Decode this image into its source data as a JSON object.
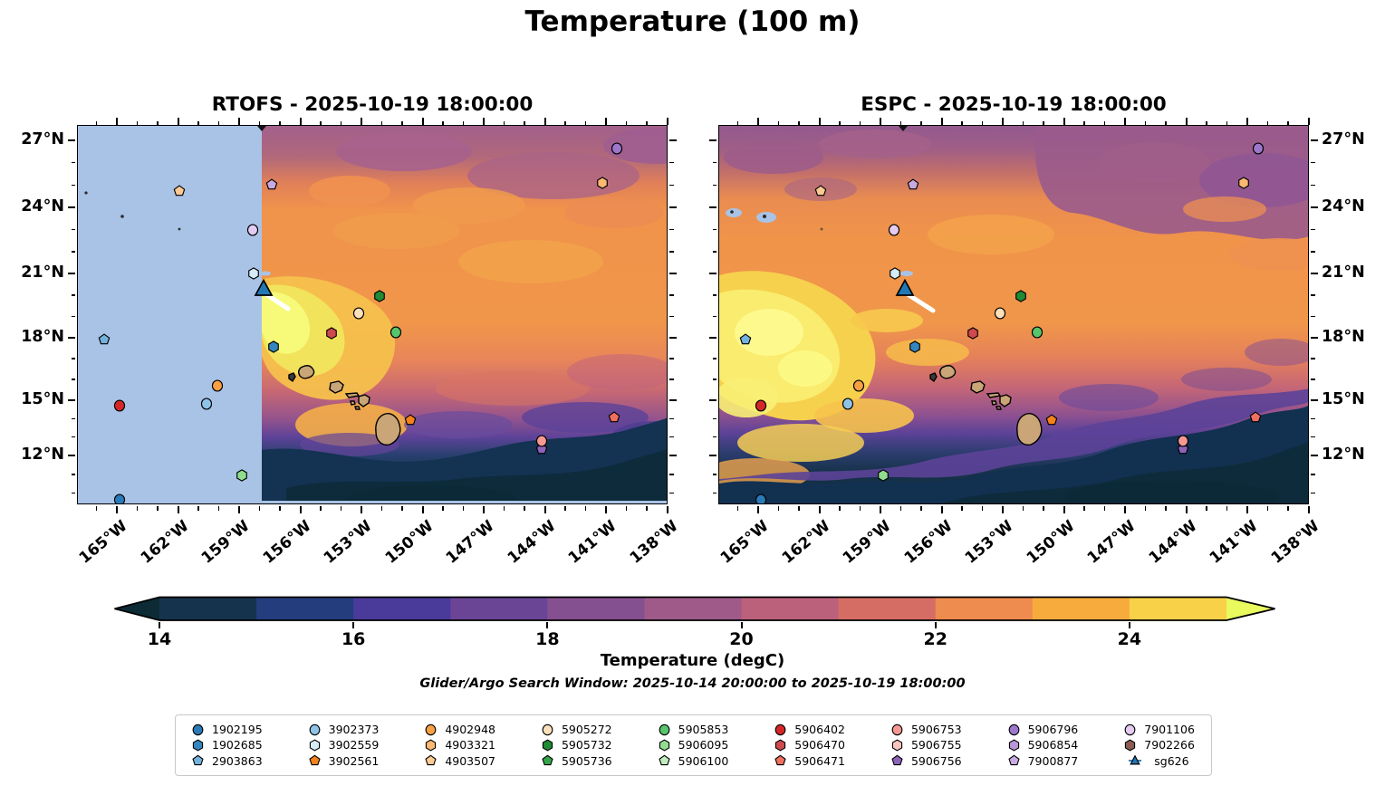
{
  "title": "Temperature (100 m)",
  "panels": [
    {
      "id": "rtofs",
      "title": "RTOFS - 2025-10-19 18:00:00",
      "yLabelSide": "left"
    },
    {
      "id": "espc",
      "title": "ESPC - 2025-10-19 18:00:00",
      "yLabelSide": "right"
    }
  ],
  "axes": {
    "lon_ticks": [
      {
        "label": "165°W",
        "f": 0.0678
      },
      {
        "label": "162°W",
        "f": 0.1713
      },
      {
        "label": "159°W",
        "f": 0.2747
      },
      {
        "label": "156°W",
        "f": 0.3782
      },
      {
        "label": "153°W",
        "f": 0.4817
      },
      {
        "label": "150°W",
        "f": 0.5852
      },
      {
        "label": "147°W",
        "f": 0.6887
      },
      {
        "label": "144°W",
        "f": 0.7921
      },
      {
        "label": "141°W",
        "f": 0.8956
      },
      {
        "label": "138°W",
        "f": 0.9991
      }
    ],
    "lat_ticks": [
      {
        "label": "27°N",
        "f": 0.0406
      },
      {
        "label": "24°N",
        "f": 0.2179
      },
      {
        "label": "21°N",
        "f": 0.3921
      },
      {
        "label": "18°N",
        "f": 0.5616
      },
      {
        "label": "15°N",
        "f": 0.7248
      },
      {
        "label": "12°N",
        "f": 0.8719
      }
    ]
  },
  "colorbar": {
    "label": "Temperature (degC)",
    "subtitle": "Glider/Argo Search Window: 2025-10-14 20:00:00 to 2025-10-19 18:00:00",
    "ticks": [
      "14",
      "16",
      "18",
      "20",
      "22",
      "24"
    ],
    "range": [
      14,
      25
    ],
    "left_arrow_color": "#0c2b35",
    "right_arrow_color": "#e9fa5e",
    "segment_colors": [
      "#16334e",
      "#243d7d",
      "#4a3a9a",
      "#6a4596",
      "#855090",
      "#9f5a8a",
      "#bc617c",
      "#d66d65",
      "#ee8b4e",
      "#f8ab3d",
      "#f9d148"
    ]
  },
  "map_style": {
    "mask_color": "#a9c3e6",
    "land_color": "#c9a577",
    "coast_color": "#000000",
    "track_color": "#ffffff"
  },
  "markers": [
    {
      "id": "4903507",
      "shape": "pentagon",
      "color": "#fcca92",
      "fx": 0.1713,
      "fy": 0.173,
      "lat": 24.6,
      "lon": -162.0
    },
    {
      "id": "7900877",
      "shape": "pentagon",
      "color": "#c9aae0",
      "fx": 0.3282,
      "fy": 0.1559,
      "lat": 24.9,
      "lon": -157.4
    },
    {
      "id": "5906796",
      "shape": "circle",
      "color": "#9d77cc",
      "fx": 0.9126,
      "fy": 0.0597,
      "lat": 26.6,
      "lon": -140.5
    },
    {
      "id": "4903321",
      "shape": "hexagon",
      "color": "#fbb871",
      "fx": 0.8881,
      "fy": 0.1504,
      "lat": 25.0,
      "lon": -141.2
    },
    {
      "id": "7901106",
      "shape": "circle",
      "color": "#e3cbf2",
      "fx": 0.2965,
      "fy": 0.2738,
      "lat": 22.9,
      "lon": -158.4
    },
    {
      "id": "3902559",
      "shape": "hexagon",
      "color": "#d6ebf8",
      "fx": 0.2975,
      "fy": 0.389,
      "lat": 20.9,
      "lon": -158.3
    },
    {
      "id": "sg626",
      "shape": "triangle",
      "color": "#2278b5",
      "fx": 0.3144,
      "fy": 0.4284,
      "lat": 20.3,
      "lon": -157.9,
      "big": true
    },
    {
      "id": "5905732",
      "shape": "hexagon",
      "color": "#1f8b35",
      "fx": 0.51,
      "fy": 0.4475,
      "lat": 19.9,
      "lon": -152.2
    },
    {
      "id": "5905272",
      "shape": "circle",
      "color": "#fce0bc",
      "fx": 0.4755,
      "fy": 0.4952,
      "lat": 19.2,
      "lon": -153.2
    },
    {
      "id": "5906470",
      "shape": "hexagon",
      "color": "#cf4a4e",
      "fx": 0.4287,
      "fy": 0.5465,
      "lat": 18.3,
      "lon": -154.5
    },
    {
      "id": "5905853",
      "shape": "circle",
      "color": "#57c56c",
      "fx": 0.5376,
      "fy": 0.5441,
      "lat": 18.3,
      "lon": -151.4
    },
    {
      "id": "2903863",
      "shape": "pentagon",
      "color": "#74b2dd",
      "fx": 0.0449,
      "fy": 0.5644,
      "lat": 18.0,
      "lon": -165.7
    },
    {
      "id": "1902685",
      "shape": "hexagon",
      "color": "#3585bf",
      "fx": 0.3313,
      "fy": 0.5835,
      "lat": 17.6,
      "lon": -157.4
    },
    {
      "id": "5906402",
      "shape": "circle",
      "color": "#d62728",
      "fx": 0.0706,
      "fy": 0.7363,
      "lat": 14.9,
      "lon": -164.9
    },
    {
      "id": "4902948",
      "shape": "circle",
      "color": "#f99f44",
      "fx": 0.2367,
      "fy": 0.6849,
      "lat": 15.8,
      "lon": -160.1
    },
    {
      "id": "3902373",
      "shape": "circle",
      "color": "#8ec4e8",
      "fx": 0.2173,
      "fy": 0.7319,
      "lat": 15.0,
      "lon": -160.7
    },
    {
      "id": "3902561",
      "shape": "pentagon",
      "color": "#f5821a",
      "fx": 0.5629,
      "fy": 0.7757,
      "lat": 14.2,
      "lon": -150.6
    },
    {
      "id": "5906471",
      "shape": "pentagon",
      "color": "#f0705f",
      "fx": 0.9075,
      "fy": 0.7685,
      "lat": 14.3,
      "lon": -140.6
    },
    {
      "id": "5906756",
      "shape": "pentagon",
      "color": "#8d63b8",
      "fx": 0.7858,
      "fy": 0.8527,
      "lat": 12.8,
      "lon": -144.2
    },
    {
      "id": "5906753",
      "shape": "circle",
      "color": "#f79992",
      "fx": 0.7858,
      "fy": 0.8298,
      "lat": 13.2,
      "lon": -144.2
    },
    {
      "id": "5906095",
      "shape": "hexagon",
      "color": "#90dd90",
      "fx": 0.2771,
      "fy": 0.9205,
      "lat": 11.6,
      "lon": -158.9
    },
    {
      "id": "1902195",
      "shape": "circle",
      "color": "#2b7ab8",
      "fx": 0.0706,
      "fy": 0.9857,
      "lat": 10.4,
      "lon": -164.9
    }
  ],
  "legend": {
    "columns": [
      [
        {
          "label": "1902195",
          "shape": "circle",
          "color": "#2b7ab8"
        },
        {
          "label": "1902685",
          "shape": "hexagon",
          "color": "#3585bf"
        },
        {
          "label": "2903863",
          "shape": "pentagon",
          "color": "#74b2dd"
        }
      ],
      [
        {
          "label": "3902373",
          "shape": "circle",
          "color": "#8ec4e8"
        },
        {
          "label": "3902559",
          "shape": "hexagon",
          "color": "#d6ebf8"
        },
        {
          "label": "3902561",
          "shape": "pentagon",
          "color": "#f5821a"
        }
      ],
      [
        {
          "label": "4902948",
          "shape": "circle",
          "color": "#f99f44"
        },
        {
          "label": "4903321",
          "shape": "hexagon",
          "color": "#fbb871"
        },
        {
          "label": "4903507",
          "shape": "pentagon",
          "color": "#fcca92"
        }
      ],
      [
        {
          "label": "5905272",
          "shape": "circle",
          "color": "#fce0bc"
        },
        {
          "label": "5905732",
          "shape": "hexagon",
          "color": "#1f8b35"
        },
        {
          "label": "5905736",
          "shape": "pentagon",
          "color": "#33a64a"
        }
      ],
      [
        {
          "label": "5905853",
          "shape": "circle",
          "color": "#57c56c"
        },
        {
          "label": "5906095",
          "shape": "hexagon",
          "color": "#90dd90"
        },
        {
          "label": "5906100",
          "shape": "pentagon",
          "color": "#c0edbd"
        }
      ],
      [
        {
          "label": "5906402",
          "shape": "circle",
          "color": "#d62728"
        },
        {
          "label": "5906470",
          "shape": "hexagon",
          "color": "#cf4a4e"
        },
        {
          "label": "5906471",
          "shape": "pentagon",
          "color": "#f0705f"
        }
      ],
      [
        {
          "label": "5906753",
          "shape": "circle",
          "color": "#f79992"
        },
        {
          "label": "5906755",
          "shape": "hexagon",
          "color": "#fac5c1"
        },
        {
          "label": "5906756",
          "shape": "pentagon",
          "color": "#8d63b8"
        }
      ],
      [
        {
          "label": "5906796",
          "shape": "circle",
          "color": "#9d77cc"
        },
        {
          "label": "5906854",
          "shape": "hexagon",
          "color": "#b797d7"
        },
        {
          "label": "7900877",
          "shape": "pentagon",
          "color": "#c9aae0"
        }
      ],
      [
        {
          "label": "7901106",
          "shape": "circle",
          "color": "#e3cbf2"
        },
        {
          "label": "7902266",
          "shape": "hexagon",
          "color": "#8b5c50"
        },
        {
          "label": "sg626",
          "shape": "glider",
          "color": "#2278b5"
        }
      ]
    ]
  },
  "chart_data": {
    "type": "heatmap",
    "title": "Temperature (100 m)",
    "variable": "Temperature (degC)",
    "panels": [
      {
        "model": "RTOFS",
        "valid_time": "2025-10-19 18:00:00",
        "note": "western portion masked (no data)"
      },
      {
        "model": "ESPC",
        "valid_time": "2025-10-19 18:00:00"
      }
    ],
    "x_axis": {
      "label_ticks": [
        "165°W",
        "162°W",
        "159°W",
        "156°W",
        "153°W",
        "150°W",
        "147°W",
        "144°W",
        "141°W",
        "138°W"
      ],
      "range_lon": [
        -167,
        -138
      ]
    },
    "y_axis": {
      "label_ticks": [
        "27°N",
        "24°N",
        "21°N",
        "18°N",
        "15°N",
        "12°N"
      ],
      "range_lat": [
        10,
        27.7
      ]
    },
    "colorbar": {
      "label": "Temperature (degC)",
      "ticks": [
        14,
        16,
        18,
        20,
        22,
        24
      ],
      "range": [
        14,
        25
      ],
      "extended": true
    },
    "search_window": "2025-10-14 20:00:00 to 2025-10-19 18:00:00",
    "platform_positions": [
      {
        "id": "4903507",
        "lat": 24.6,
        "lon": -162.0
      },
      {
        "id": "7900877",
        "lat": 24.9,
        "lon": -157.4
      },
      {
        "id": "5906796",
        "lat": 26.6,
        "lon": -140.5
      },
      {
        "id": "4903321",
        "lat": 25.0,
        "lon": -141.2
      },
      {
        "id": "7901106",
        "lat": 22.9,
        "lon": -158.4
      },
      {
        "id": "3902559",
        "lat": 20.9,
        "lon": -158.3
      },
      {
        "id": "sg626",
        "lat": 20.3,
        "lon": -157.9
      },
      {
        "id": "5905732",
        "lat": 19.9,
        "lon": -152.2
      },
      {
        "id": "5905272",
        "lat": 19.2,
        "lon": -153.2
      },
      {
        "id": "5906470",
        "lat": 18.3,
        "lon": -154.5
      },
      {
        "id": "5905853",
        "lat": 18.3,
        "lon": -151.4
      },
      {
        "id": "2903863",
        "lat": 18.0,
        "lon": -165.7
      },
      {
        "id": "1902685",
        "lat": 17.6,
        "lon": -157.4
      },
      {
        "id": "5906402",
        "lat": 14.9,
        "lon": -164.9
      },
      {
        "id": "4902948",
        "lat": 15.8,
        "lon": -160.1
      },
      {
        "id": "3902373",
        "lat": 15.0,
        "lon": -160.7
      },
      {
        "id": "3902561",
        "lat": 14.2,
        "lon": -150.6
      },
      {
        "id": "5906471",
        "lat": 14.3,
        "lon": -140.6
      },
      {
        "id": "5906756",
        "lat": 12.8,
        "lon": -144.2
      },
      {
        "id": "5906753",
        "lat": 13.2,
        "lon": -144.2
      },
      {
        "id": "5906095",
        "lat": 11.6,
        "lon": -158.9
      },
      {
        "id": "1902195",
        "lat": 10.4,
        "lon": -164.9
      }
    ]
  }
}
